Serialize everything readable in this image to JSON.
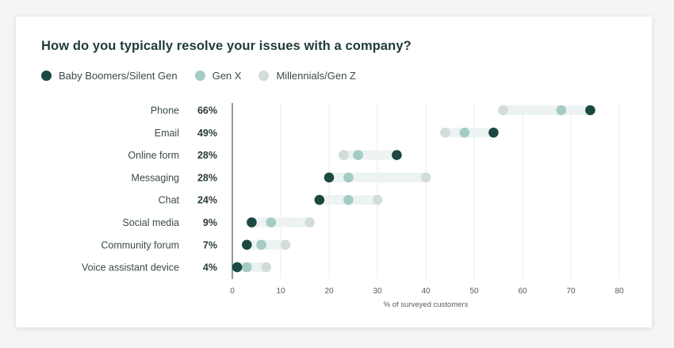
{
  "title": "How do you typically resolve your issues with a company?",
  "legend": [
    {
      "name": "Baby Boomers/Silent Gen",
      "color": "#1b4942"
    },
    {
      "name": "Gen X",
      "color": "#a3ccc4"
    },
    {
      "name": "Millennials/Gen Z",
      "color": "#d2dcda"
    }
  ],
  "colors": {
    "range_band": "#ecf3f2",
    "axis_line": "#1f3a3a",
    "grid": "#e8ecec"
  },
  "chart_data": {
    "type": "scatter",
    "title": "How do you typically resolve your issues with a company?",
    "xlabel": "% of surveyed customers",
    "xlim": [
      0,
      80
    ],
    "xticks": [
      0,
      10,
      20,
      30,
      40,
      50,
      60,
      70,
      80
    ],
    "grid": true,
    "legend_position": "top-left",
    "categories": [
      "Phone",
      "Email",
      "Online form",
      "Messaging",
      "Chat",
      "Social media",
      "Community forum",
      "Voice assistant device"
    ],
    "totals": [
      "66%",
      "49%",
      "28%",
      "28%",
      "24%",
      "9%",
      "7%",
      "4%"
    ],
    "series": [
      {
        "name": "Baby Boomers/Silent Gen",
        "values": [
          74,
          54,
          34,
          20,
          18,
          4,
          3,
          1
        ]
      },
      {
        "name": "Gen X",
        "values": [
          68,
          48,
          26,
          24,
          24,
          8,
          6,
          3
        ]
      },
      {
        "name": "Millennials/Gen Z",
        "values": [
          56,
          44,
          23,
          40,
          30,
          16,
          11,
          7
        ]
      }
    ]
  }
}
